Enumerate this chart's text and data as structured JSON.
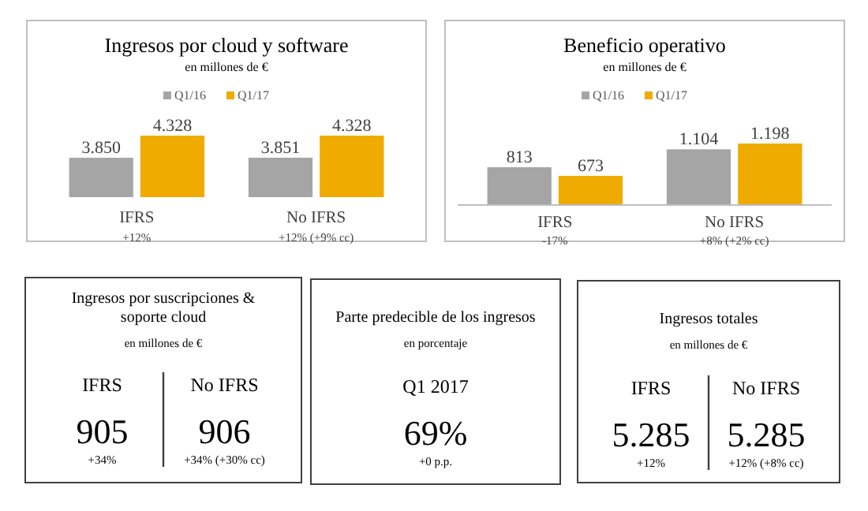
{
  "chart_data": [
    {
      "type": "bar",
      "title": "Ingresos por cloud y software",
      "subtitle": "en millones de €",
      "categories": [
        "IFRS",
        "No IFRS"
      ],
      "series": [
        {
          "name": "Q1/16",
          "color": "#a5a5a5",
          "values": [
            3850,
            3851
          ],
          "value_labels": [
            "3.850",
            "3.851"
          ]
        },
        {
          "name": "Q1/17",
          "color": "#f0ab00",
          "values": [
            4328,
            4328
          ],
          "value_labels": [
            "4.328",
            "4.328"
          ]
        }
      ],
      "ylim": [
        3000,
        4328
      ],
      "legend": "top",
      "annotations": [
        "+12%",
        "+12% (+9% cc)"
      ]
    },
    {
      "type": "bar",
      "title": "Beneficio operativo",
      "subtitle": "en millones de €",
      "categories": [
        "IFRS",
        "No IFRS"
      ],
      "series": [
        {
          "name": "Q1/16",
          "color": "#a5a5a5",
          "values": [
            813,
            1104
          ],
          "value_labels": [
            "813",
            "1.104"
          ]
        },
        {
          "name": "Q1/17",
          "color": "#f0ab00",
          "values": [
            673,
            1198
          ],
          "value_labels": [
            "673",
            "1.198"
          ]
        }
      ],
      "ylim": [
        200,
        1198
      ],
      "legend": "top",
      "annotations": [
        "-17%",
        "+8% (+2% cc)"
      ]
    },
    {
      "type": "other",
      "title": "Ingresos por suscripciones & soporte cloud",
      "subtitle": "en millones de €",
      "categories": [
        "IFRS",
        "No IFRS"
      ],
      "annotations": [
        "905",
        "+34%",
        "906",
        "+34% (+30% cc)"
      ]
    },
    {
      "type": "other",
      "title": "Parte predecible de los ingresos",
      "subtitle": "en porcentaje",
      "categories": [
        "Q1 2017"
      ],
      "annotations": [
        "69%",
        "+0 p.p."
      ]
    },
    {
      "type": "other",
      "title": "Ingresos totales",
      "subtitle": "en millones de €",
      "categories": [
        "IFRS",
        "No IFRS"
      ],
      "annotations": [
        "5.285",
        "+12%",
        "5.285",
        "+12% (+8% cc)"
      ]
    }
  ]
}
